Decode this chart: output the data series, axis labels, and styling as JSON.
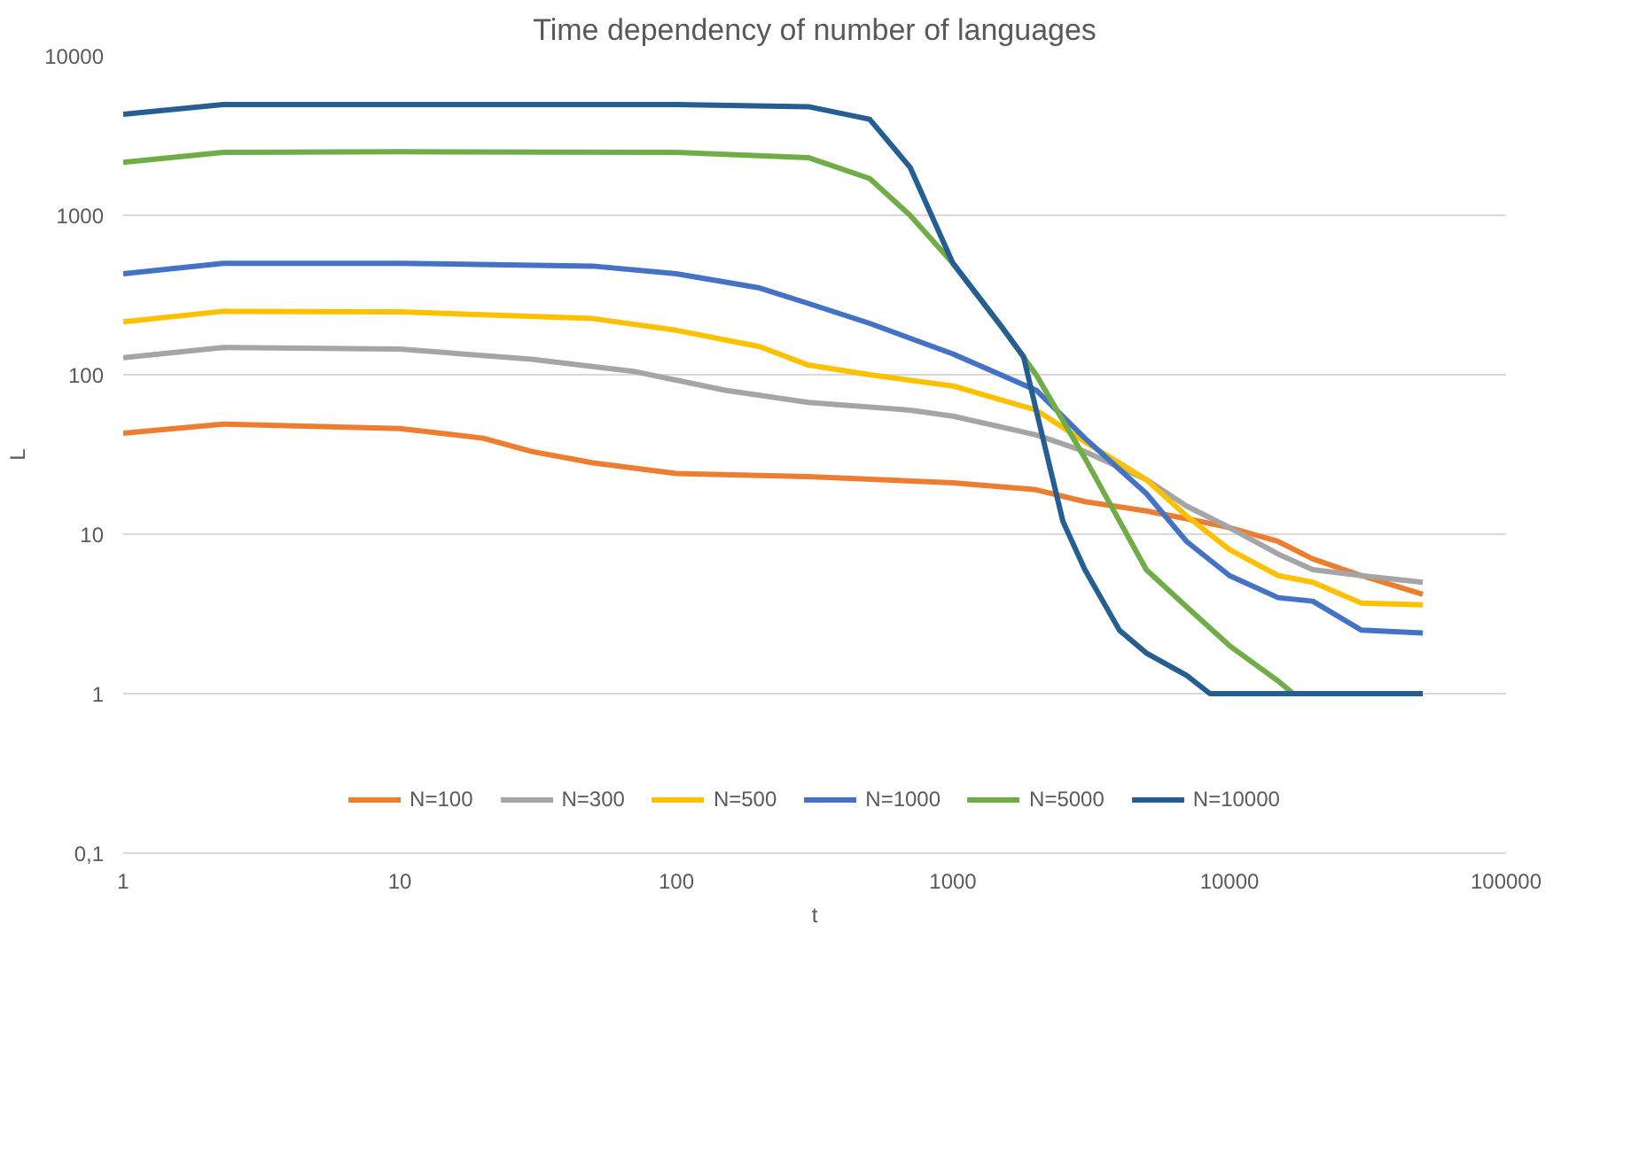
{
  "chart_data": {
    "type": "line",
    "title": "Time dependency of number of languages",
    "xlabel": "t",
    "ylabel": "L",
    "log": "xy",
    "xlim": [
      1,
      100000
    ],
    "xticks": [
      1,
      10,
      100,
      1000,
      10000,
      100000
    ],
    "ylim": [
      0.1,
      10000
    ],
    "yticks": [
      {
        "value": 0.1,
        "label": "0,1"
      },
      1,
      10,
      100,
      1000,
      10000
    ],
    "grid": "y",
    "legend": "bottom",
    "line_style": "solid",
    "marker": "none",
    "series": [
      {
        "name": "N=100",
        "color": "#ed7d31",
        "x": [
          1,
          2.3,
          10,
          20,
          30,
          50,
          100,
          300,
          1000,
          2000,
          3000,
          5000,
          7000,
          10000,
          15000,
          20000,
          30000,
          50000
        ],
        "values": [
          43,
          49,
          46,
          40,
          33,
          28,
          24,
          23,
          21,
          19,
          16,
          14,
          12.5,
          11,
          9,
          7,
          5.5,
          4.2
        ]
      },
      {
        "name": "N=300",
        "color": "#a5a5a5",
        "x": [
          1,
          2.3,
          10,
          30,
          70,
          150,
          300,
          700,
          1000,
          2000,
          3000,
          5000,
          7000,
          10000,
          15000,
          20000,
          30000,
          50000
        ],
        "values": [
          128,
          148,
          145,
          125,
          105,
          80,
          67,
          60,
          55,
          42,
          33,
          22,
          15,
          11,
          7.5,
          6,
          5.5,
          5
        ]
      },
      {
        "name": "N=500",
        "color": "#ffc000",
        "x": [
          1,
          2.3,
          10,
          50,
          100,
          200,
          300,
          500,
          1000,
          2000,
          3000,
          5000,
          7000,
          10000,
          15000,
          20000,
          30000,
          50000
        ],
        "values": [
          215,
          250,
          248,
          225,
          190,
          150,
          115,
          100,
          85,
          60,
          38,
          22,
          13,
          8,
          5.5,
          5,
          3.7,
          3.6
        ]
      },
      {
        "name": "N=1000",
        "color": "#4472c4",
        "x": [
          1,
          2.3,
          10,
          50,
          100,
          200,
          300,
          500,
          1000,
          2000,
          3000,
          5000,
          7000,
          10000,
          15000,
          20000,
          30000,
          50000
        ],
        "values": [
          430,
          500,
          500,
          480,
          430,
          350,
          280,
          210,
          135,
          80,
          40,
          18,
          9,
          5.5,
          4,
          3.8,
          2.5,
          2.4
        ]
      },
      {
        "name": "N=5000",
        "color": "#70ad47",
        "x": [
          1,
          2.3,
          10,
          100,
          300,
          500,
          700,
          1000,
          1500,
          2000,
          3000,
          5000,
          7000,
          10000,
          15000,
          17000
        ],
        "values": [
          2150,
          2480,
          2500,
          2480,
          2300,
          1700,
          1000,
          500,
          200,
          100,
          30,
          6,
          3.5,
          2,
          1.2,
          1
        ]
      },
      {
        "name": "N=10000",
        "color": "#255e91",
        "x": [
          1,
          2.3,
          10,
          100,
          300,
          500,
          700,
          1000,
          1500,
          1800,
          2000,
          2500,
          3000,
          4000,
          5000,
          7000,
          8500,
          50000
        ],
        "values": [
          4300,
          4950,
          4950,
          4950,
          4800,
          4000,
          2000,
          500,
          200,
          130,
          60,
          12,
          6,
          2.5,
          1.8,
          1.3,
          1,
          1
        ]
      }
    ]
  }
}
